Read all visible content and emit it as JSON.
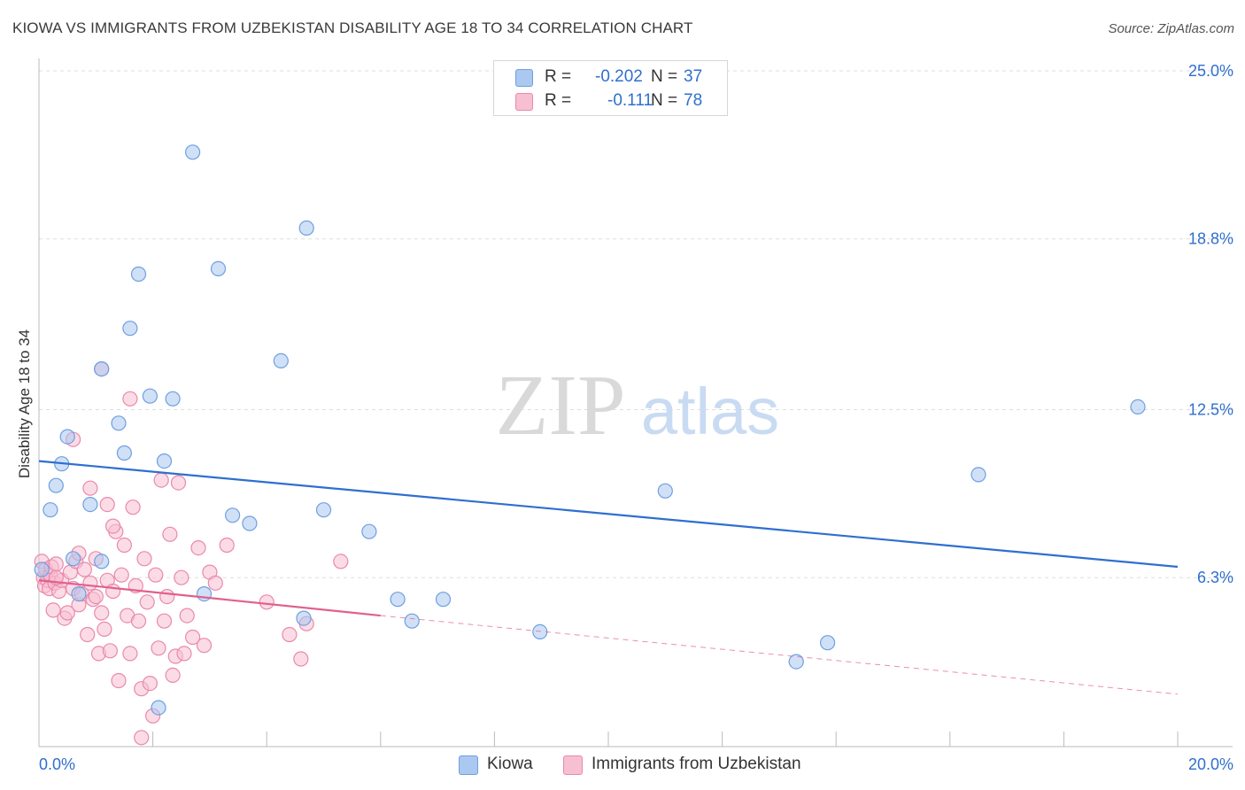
{
  "header": {
    "title": "KIOWA VS IMMIGRANTS FROM UZBEKISTAN DISABILITY AGE 18 TO 34 CORRELATION CHART",
    "source": "Source: ZipAtlas.com"
  },
  "watermark": {
    "zip": "ZIP",
    "atlas": "atlas"
  },
  "legend": {
    "rows": [
      {
        "r_label": "R =",
        "r_value": "-0.202",
        "n_label": "N =",
        "n_value": "37"
      },
      {
        "r_label": "R =",
        "r_value": "-0.111",
        "n_label": "N =",
        "n_value": "78"
      }
    ]
  },
  "bottom_legend": {
    "kiowa": "Kiowa",
    "uzbekistan": "Immigrants from Uzbekistan"
  },
  "colors": {
    "kiowa_fill": "#aac8f0",
    "kiowa_stroke": "#6f9fe0",
    "kiowa_line": "#2f6fcf",
    "uzbek_fill": "#f7bfd2",
    "uzbek_stroke": "#ea89aa",
    "uzbek_line": "#e0608e",
    "tick_label": "#2f6fcf",
    "grid": "#dddddd"
  },
  "chart_data": {
    "type": "scatter",
    "title": "KIOWA VS IMMIGRANTS FROM UZBEKISTAN DISABILITY AGE 18 TO 34 CORRELATION CHART",
    "xlabel": "",
    "ylabel": "Disability Age 18 to 34",
    "xlim": [
      0,
      20
    ],
    "ylim": [
      0,
      26
    ],
    "x_tick_labels": [
      "0.0%",
      "20.0%"
    ],
    "y_ticks": [
      6.3,
      12.5,
      18.8,
      25.0
    ],
    "y_tick_labels": [
      "6.3%",
      "12.5%",
      "18.8%",
      "25.0%"
    ],
    "grid": "horizontal dashed",
    "legend_position": "top-center",
    "series": [
      {
        "name": "Kiowa",
        "r": -0.202,
        "n": 37,
        "trend": {
          "x": [
            0,
            20
          ],
          "y": [
            10.6,
            6.7
          ]
        },
        "points": [
          [
            0.05,
            6.6
          ],
          [
            0.2,
            8.8
          ],
          [
            0.3,
            9.7
          ],
          [
            0.4,
            10.5
          ],
          [
            0.5,
            11.5
          ],
          [
            0.6,
            7.0
          ],
          [
            0.7,
            5.7
          ],
          [
            0.9,
            9.0
          ],
          [
            1.1,
            14.0
          ],
          [
            1.1,
            6.9
          ],
          [
            1.4,
            12.0
          ],
          [
            1.5,
            10.9
          ],
          [
            1.6,
            15.5
          ],
          [
            1.75,
            17.5
          ],
          [
            1.95,
            13.0
          ],
          [
            2.2,
            10.6
          ],
          [
            2.35,
            12.9
          ],
          [
            2.7,
            22.0
          ],
          [
            2.9,
            5.7
          ],
          [
            3.15,
            17.7
          ],
          [
            3.4,
            8.6
          ],
          [
            3.7,
            8.3
          ],
          [
            4.25,
            14.3
          ],
          [
            4.65,
            4.8
          ],
          [
            4.7,
            19.2
          ],
          [
            5.0,
            8.8
          ],
          [
            5.8,
            8.0
          ],
          [
            6.3,
            5.5
          ],
          [
            6.55,
            4.7
          ],
          [
            7.1,
            5.5
          ],
          [
            8.8,
            4.3
          ],
          [
            11.0,
            9.5
          ],
          [
            13.3,
            3.2
          ],
          [
            13.85,
            3.9
          ],
          [
            16.5,
            10.1
          ],
          [
            19.3,
            12.6
          ],
          [
            2.1,
            1.5
          ]
        ]
      },
      {
        "name": "Immigrants from Uzbekistan",
        "r": -0.111,
        "n": 78,
        "trend": {
          "x": [
            0,
            6
          ],
          "y": [
            6.2,
            4.9
          ]
        },
        "trend_dashed": {
          "x": [
            6,
            20
          ],
          "y": [
            4.9,
            2.0
          ]
        },
        "points": [
          [
            0.05,
            6.9
          ],
          [
            0.08,
            6.3
          ],
          [
            0.1,
            6.0
          ],
          [
            0.12,
            6.6
          ],
          [
            0.15,
            6.2
          ],
          [
            0.18,
            5.9
          ],
          [
            0.2,
            6.4
          ],
          [
            0.22,
            6.7
          ],
          [
            0.25,
            5.1
          ],
          [
            0.28,
            6.1
          ],
          [
            0.3,
            6.8
          ],
          [
            0.35,
            5.8
          ],
          [
            0.4,
            6.2
          ],
          [
            0.45,
            4.8
          ],
          [
            0.5,
            5.0
          ],
          [
            0.55,
            6.5
          ],
          [
            0.6,
            5.9
          ],
          [
            0.65,
            6.9
          ],
          [
            0.7,
            5.3
          ],
          [
            0.75,
            5.7
          ],
          [
            0.8,
            6.6
          ],
          [
            0.85,
            4.2
          ],
          [
            0.9,
            6.1
          ],
          [
            0.95,
            5.5
          ],
          [
            1.0,
            7.0
          ],
          [
            1.05,
            3.5
          ],
          [
            1.1,
            5.0
          ],
          [
            1.15,
            4.4
          ],
          [
            1.2,
            6.2
          ],
          [
            1.25,
            3.6
          ],
          [
            1.3,
            5.8
          ],
          [
            1.35,
            8.0
          ],
          [
            1.4,
            2.5
          ],
          [
            1.45,
            6.4
          ],
          [
            1.5,
            7.5
          ],
          [
            1.55,
            4.9
          ],
          [
            1.6,
            3.5
          ],
          [
            1.65,
            8.9
          ],
          [
            1.7,
            6.0
          ],
          [
            1.75,
            4.7
          ],
          [
            1.8,
            2.2
          ],
          [
            1.85,
            7.0
          ],
          [
            1.9,
            5.4
          ],
          [
            1.95,
            2.4
          ],
          [
            2.0,
            1.2
          ],
          [
            2.05,
            6.4
          ],
          [
            2.1,
            3.7
          ],
          [
            2.15,
            9.9
          ],
          [
            2.2,
            4.7
          ],
          [
            2.25,
            5.6
          ],
          [
            2.3,
            7.9
          ],
          [
            2.35,
            2.7
          ],
          [
            2.4,
            3.4
          ],
          [
            2.45,
            9.8
          ],
          [
            2.5,
            6.3
          ],
          [
            2.55,
            3.5
          ],
          [
            2.6,
            4.9
          ],
          [
            2.7,
            4.1
          ],
          [
            2.8,
            7.4
          ],
          [
            2.9,
            3.8
          ],
          [
            3.0,
            6.5
          ],
          [
            3.1,
            6.1
          ],
          [
            3.3,
            7.5
          ],
          [
            4.0,
            5.4
          ],
          [
            4.4,
            4.2
          ],
          [
            4.6,
            3.3
          ],
          [
            4.7,
            4.6
          ],
          [
            5.3,
            6.9
          ],
          [
            0.6,
            11.4
          ],
          [
            0.9,
            9.6
          ],
          [
            1.2,
            9.0
          ],
          [
            1.3,
            8.2
          ],
          [
            1.1,
            14.0
          ],
          [
            1.6,
            12.9
          ],
          [
            0.3,
            6.3
          ],
          [
            0.7,
            7.2
          ],
          [
            1.0,
            5.6
          ],
          [
            1.8,
            0.4
          ]
        ]
      }
    ]
  }
}
